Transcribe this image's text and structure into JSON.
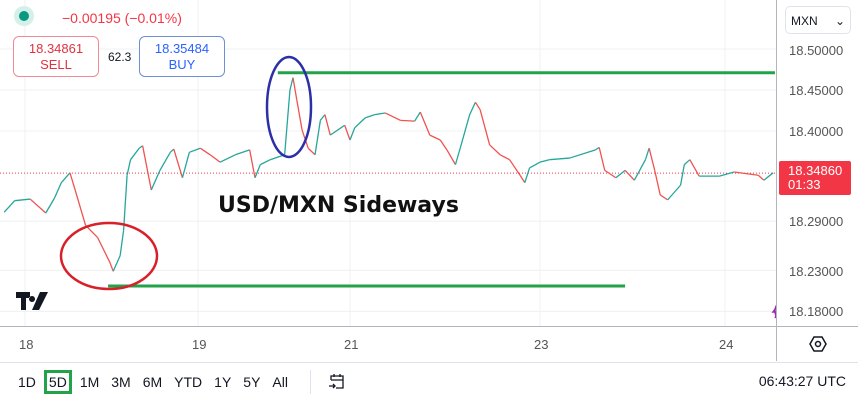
{
  "header": {
    "change": "−0.00195 (−0.01%)",
    "sell_price": "18.34861",
    "sell_label": "SELL",
    "spread": "62.3",
    "buy_price": "18.35484",
    "buy_label": "BUY",
    "status_color": "#089981"
  },
  "annotation": {
    "title": "USD/MXN Sideways"
  },
  "axis_right": {
    "currency": "MXN",
    "labels": [
      "18.50000",
      "18.45000",
      "18.40000",
      "18.29000",
      "18.23000",
      "18.18000"
    ],
    "current_price": "18.34860",
    "countdown": "01:33"
  },
  "x_axis": {
    "labels": [
      "18",
      "19",
      "21",
      "23",
      "24"
    ]
  },
  "toolbar": {
    "ranges": [
      "1D",
      "5D",
      "1M",
      "3M",
      "6M",
      "YTD",
      "1Y",
      "5Y",
      "All"
    ],
    "active_range": "5D",
    "clock": "06:43:27 UTC"
  },
  "icons": {
    "logo": "TV",
    "settings": "gear-icon",
    "calendar": "calendar-goto-icon",
    "lightning": "lightning-icon"
  },
  "chart_data": {
    "type": "line",
    "xlabel": "",
    "ylabel": "",
    "x_ticks": [
      18,
      19,
      21,
      23,
      24
    ],
    "y_ticks": [
      18.5,
      18.45,
      18.4,
      18.29,
      18.23,
      18.18
    ],
    "current_price": 18.3486,
    "colors": {
      "up": "#26a69a",
      "down": "#ef5350",
      "support": "#22a34a",
      "price_line": "#f23645"
    },
    "series": [
      {
        "points": [
          [
            17.88,
            18.301
          ],
          [
            17.94,
            18.315
          ],
          [
            18.03,
            18.317
          ],
          [
            18.12,
            18.3
          ],
          [
            18.17,
            18.318
          ],
          [
            18.21,
            18.337
          ],
          [
            18.26,
            18.349
          ],
          [
            18.29,
            18.328
          ],
          [
            18.35,
            18.285
          ],
          [
            18.42,
            18.27
          ],
          [
            18.49,
            18.24
          ],
          [
            18.51,
            18.229
          ],
          [
            18.55,
            18.248
          ],
          [
            18.57,
            18.279
          ],
          [
            18.59,
            18.346
          ],
          [
            18.61,
            18.365
          ],
          [
            18.66,
            18.379
          ],
          [
            18.68,
            18.382
          ],
          [
            18.73,
            18.328
          ],
          [
            18.78,
            18.352
          ],
          [
            18.84,
            18.374
          ],
          [
            18.86,
            18.378
          ],
          [
            18.91,
            18.343
          ],
          [
            18.95,
            18.374
          ],
          [
            19.03,
            18.379
          ],
          [
            19.16,
            18.371
          ],
          [
            19.29,
            18.362
          ],
          [
            19.49,
            18.371
          ],
          [
            19.68,
            18.377
          ],
          [
            19.75,
            18.343
          ],
          [
            19.82,
            18.359
          ],
          [
            19.95,
            18.365
          ],
          [
            20.14,
            18.371
          ],
          [
            20.21,
            18.45
          ],
          [
            20.25,
            18.465
          ],
          [
            20.3,
            18.438
          ],
          [
            20.37,
            18.401
          ],
          [
            20.45,
            18.379
          ],
          [
            20.54,
            18.371
          ],
          [
            20.61,
            18.413
          ],
          [
            20.67,
            18.42
          ],
          [
            20.74,
            18.395
          ],
          [
            20.93,
            18.407
          ],
          [
            21.0,
            18.389
          ],
          [
            21.05,
            18.404
          ],
          [
            21.16,
            18.416
          ],
          [
            21.26,
            18.42
          ],
          [
            21.37,
            18.422
          ],
          [
            21.53,
            18.413
          ],
          [
            21.68,
            18.412
          ],
          [
            21.74,
            18.423
          ],
          [
            21.84,
            18.395
          ],
          [
            21.95,
            18.389
          ],
          [
            22.02,
            18.377
          ],
          [
            22.11,
            18.359
          ],
          [
            22.16,
            18.379
          ],
          [
            22.26,
            18.42
          ],
          [
            22.32,
            18.435
          ],
          [
            22.37,
            18.426
          ],
          [
            22.47,
            18.383
          ],
          [
            22.58,
            18.371
          ],
          [
            22.68,
            18.365
          ],
          [
            22.79,
            18.346
          ],
          [
            22.84,
            18.337
          ],
          [
            22.89,
            18.355
          ],
          [
            23.0,
            18.362
          ],
          [
            23.05,
            18.365
          ],
          [
            23.16,
            18.367
          ],
          [
            23.3,
            18.377
          ],
          [
            23.32,
            18.38
          ],
          [
            23.35,
            18.352
          ],
          [
            23.41,
            18.343
          ],
          [
            23.46,
            18.352
          ],
          [
            23.51,
            18.34
          ],
          [
            23.57,
            18.365
          ],
          [
            23.59,
            18.379
          ],
          [
            23.62,
            18.352
          ],
          [
            23.65,
            18.322
          ],
          [
            23.69,
            18.316
          ],
          [
            23.76,
            18.334
          ],
          [
            23.78,
            18.359
          ],
          [
            23.81,
            18.365
          ],
          [
            23.86,
            18.345
          ],
          [
            23.97,
            18.345
          ],
          [
            24.05,
            18.35
          ],
          [
            24.18,
            18.346
          ],
          [
            24.21,
            18.34
          ],
          [
            24.26,
            18.349
          ]
        ]
      }
    ],
    "horizontal_lines": [
      {
        "price": 18.471,
        "from": 20.05,
        "to": 24.27
      },
      {
        "price": 18.211,
        "from": 18.48,
        "to": 23.46
      }
    ]
  }
}
